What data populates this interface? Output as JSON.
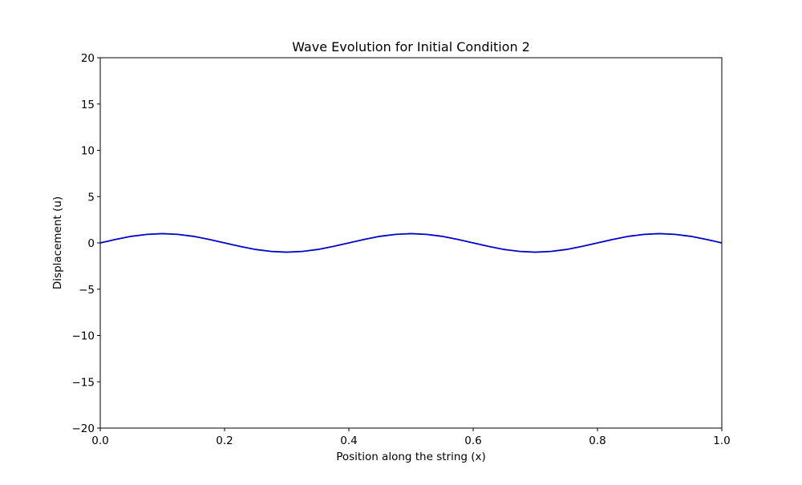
{
  "chart_data": {
    "type": "line",
    "title": "Wave Evolution for Initial Condition 2",
    "xlabel": "Position along the string (x)",
    "ylabel": "Displacement (u)",
    "xlim": [
      0.0,
      1.0
    ],
    "ylim": [
      -20,
      20
    ],
    "grid": false,
    "x_ticks": [
      0.0,
      0.2,
      0.4,
      0.6,
      0.8,
      1.0
    ],
    "x_tick_labels": [
      "0.0",
      "0.2",
      "0.4",
      "0.6",
      "0.8",
      "1.0"
    ],
    "y_ticks": [
      -20,
      -15,
      -10,
      -5,
      0,
      5,
      10,
      15,
      20
    ],
    "y_tick_labels": [
      "−20",
      "−15",
      "−10",
      "−5",
      "0",
      "5",
      "10",
      "15",
      "20"
    ],
    "series": [
      {
        "color": "#0000cc",
        "x": [
          0.0,
          0.025,
          0.05,
          0.075,
          0.1,
          0.125,
          0.15,
          0.175,
          0.2,
          0.225,
          0.25,
          0.275,
          0.3,
          0.325,
          0.35,
          0.375,
          0.4,
          0.425,
          0.45,
          0.475,
          0.5,
          0.525,
          0.55,
          0.575,
          0.6,
          0.625,
          0.65,
          0.675,
          0.7,
          0.725,
          0.75,
          0.775,
          0.8,
          0.825,
          0.85,
          0.875,
          0.9,
          0.925,
          0.95,
          0.975,
          1.0
        ],
        "y": [
          0.0,
          0.38,
          0.71,
          0.92,
          1.0,
          0.92,
          0.71,
          0.38,
          0.0,
          -0.38,
          -0.71,
          -0.92,
          -1.0,
          -0.92,
          -0.71,
          -0.38,
          0.0,
          0.38,
          0.71,
          0.92,
          1.0,
          0.92,
          0.71,
          0.38,
          0.0,
          -0.38,
          -0.71,
          -0.92,
          -1.0,
          -0.92,
          -0.71,
          -0.38,
          0.0,
          0.38,
          0.71,
          0.92,
          1.0,
          0.92,
          0.71,
          0.38,
          0.0
        ]
      }
    ]
  }
}
